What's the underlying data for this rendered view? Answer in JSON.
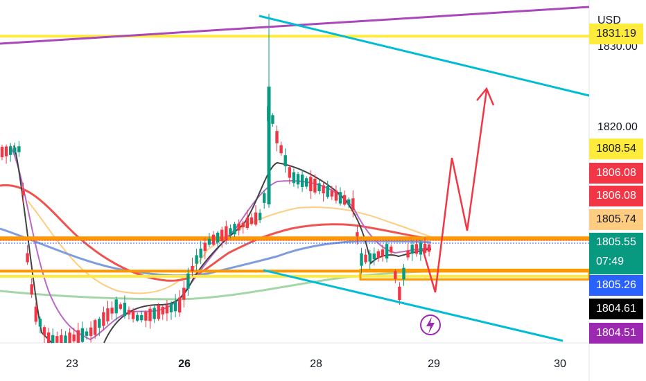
{
  "currency": "USD",
  "chart_data": {
    "type": "candlestick",
    "y_axis": {
      "ticks": [
        {
          "value": 1830.0,
          "label": "1830.00"
        },
        {
          "value": 1820.0,
          "label": "1820.00"
        }
      ],
      "ylim": [
        1797.6,
        1833.6
      ],
      "scale": "linear"
    },
    "x_axis": {
      "ticks": [
        {
          "label": "23",
          "bold": false
        },
        {
          "label": "26",
          "bold": true
        },
        {
          "label": "28",
          "bold": false
        },
        {
          "label": "29",
          "bold": false
        },
        {
          "label": "30",
          "bold": false
        }
      ]
    },
    "price_labels": [
      {
        "value": 1831.19,
        "label": "1831.19",
        "bg": "#ffeb3b",
        "fg": "#131722"
      },
      {
        "value": 1808.54,
        "label": "1808.54",
        "bg": "#ffeb3b",
        "fg": "#131722"
      },
      {
        "value": 1806.08,
        "label": "1806.08",
        "bg": "#f23645",
        "fg": "#ffffff"
      },
      {
        "value": 1806.08,
        "label": "1806.08",
        "bg": "#f23645",
        "fg": "#ffffff"
      },
      {
        "value": 1805.74,
        "label": "1805.74",
        "bg": "#ffcc80",
        "fg": "#131722"
      },
      {
        "value": 1805.55,
        "label": "1805.55",
        "sub": "07:49",
        "bg": "#089981",
        "fg": "#ffffff"
      },
      {
        "value": 1805.26,
        "label": "1805.26",
        "bg": "#2962ff",
        "fg": "#ffffff"
      },
      {
        "value": 1804.61,
        "label": "1804.61",
        "bg": "#000000",
        "fg": "#ffffff"
      },
      {
        "value": 1804.51,
        "label": "1804.51",
        "bg": "#9c27b0",
        "fg": "#ffffff"
      }
    ],
    "horizontal_levels": [
      {
        "value": 1831.19,
        "color": "#ffeb3b"
      },
      {
        "value": 1806.1,
        "color": "#ff9800"
      },
      {
        "value": 1805.9,
        "color": "#ff9800"
      },
      {
        "value": 1801.95,
        "color": "#ff9800"
      },
      {
        "value": 1801.3,
        "color": "#ffeb3b"
      }
    ],
    "colors": {
      "up": "#089981",
      "down": "#f23645",
      "yellow": "#ffeb3b",
      "orange": "#ff9800",
      "cyan": "#00bcd4",
      "purple": "#ab47bc",
      "last_price": "#2962ff",
      "forecast": "#f23645"
    },
    "annotations": [
      {
        "type": "icon",
        "name": "lightning-icon",
        "color": "#9c27b0"
      }
    ]
  }
}
